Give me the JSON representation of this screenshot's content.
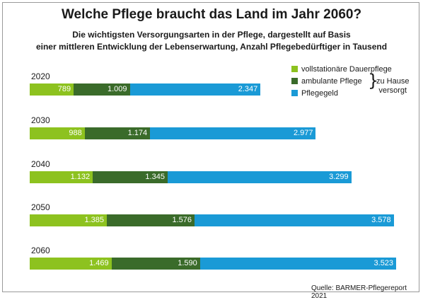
{
  "title": "Welche Pflege braucht das Land im Jahr 2060?",
  "subtitle_line1": "Die wichtigsten Versorgungsarten in der Pflege, dargestellt auf Basis",
  "subtitle_line2": "einer mittleren Entwicklung der Lebenserwartung, Anzahl Pflegebedürftiger in Tausend",
  "legend": {
    "items": [
      {
        "label": "vollstationäre Dauerpflege",
        "color": "#8dc21f"
      },
      {
        "label": "ambulante Pflege",
        "color": "#3a6b2a"
      },
      {
        "label": "Pflegegeld",
        "color": "#1a9ad6"
      }
    ],
    "bracket_line1": "zu Hause",
    "bracket_line2": "versorgt"
  },
  "source": "Quelle: BARMER-Pflegereport 2021",
  "chart_data": {
    "type": "bar",
    "orientation": "horizontal",
    "stacked": true,
    "categories": [
      "2020",
      "2030",
      "2040",
      "2050",
      "2060"
    ],
    "series": [
      {
        "name": "vollstationäre Dauerpflege",
        "values": [
          789,
          988,
          1132,
          1385,
          1469
        ],
        "labels": [
          "789",
          "988",
          "1.132",
          "1.385",
          "1.469"
        ]
      },
      {
        "name": "ambulante Pflege",
        "values": [
          1009,
          1174,
          1345,
          1576,
          1590
        ],
        "labels": [
          "1.009",
          "1.174",
          "1.345",
          "1.576",
          "1.590"
        ]
      },
      {
        "name": "Pflegegeld",
        "values": [
          2347,
          2977,
          3299,
          3578,
          3523
        ],
        "labels": [
          "2.347",
          "2.977",
          "3.299",
          "3.578",
          "3.523"
        ]
      }
    ],
    "unit": "Tausend",
    "grid": false,
    "legend_position": "top-right"
  }
}
